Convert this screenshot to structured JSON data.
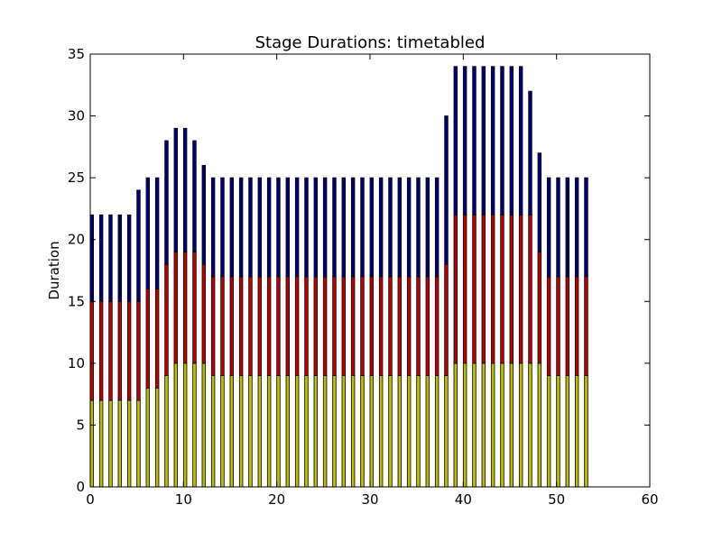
{
  "chart_data": {
    "type": "bar",
    "stacked": true,
    "title": "Stage Durations: timetabled",
    "xlabel": "",
    "ylabel": "Duration",
    "xlim": [
      0,
      60
    ],
    "ylim": [
      0,
      35
    ],
    "xticks": [
      0,
      10,
      20,
      30,
      40,
      50,
      60
    ],
    "yticks": [
      0,
      5,
      10,
      15,
      20,
      25,
      30,
      35
    ],
    "grid": false,
    "bar_width": 0.35,
    "x": [
      0,
      1,
      2,
      3,
      4,
      5,
      6,
      7,
      8,
      9,
      10,
      11,
      12,
      13,
      14,
      15,
      16,
      17,
      18,
      19,
      20,
      21,
      22,
      23,
      24,
      25,
      26,
      27,
      28,
      29,
      30,
      31,
      32,
      33,
      34,
      35,
      36,
      37,
      38,
      39,
      40,
      41,
      42,
      43,
      44,
      45,
      46,
      47,
      48,
      49,
      50,
      51,
      52,
      53
    ],
    "series": [
      {
        "color": "#bfbf00",
        "values": [
          7,
          7,
          7,
          7,
          7,
          7,
          8,
          8,
          9,
          10,
          10,
          10,
          10,
          9,
          9,
          9,
          9,
          9,
          9,
          9,
          9,
          9,
          9,
          9,
          9,
          9,
          9,
          9,
          9,
          9,
          9,
          9,
          9,
          9,
          9,
          9,
          9,
          9,
          9,
          10,
          10,
          10,
          10,
          10,
          10,
          10,
          10,
          10,
          10,
          9,
          9,
          9,
          9,
          9
        ]
      },
      {
        "color": "#bf0000",
        "values": [
          8,
          8,
          8,
          8,
          8,
          8,
          8,
          8,
          9,
          9,
          9,
          9,
          8,
          8,
          8,
          8,
          8,
          8,
          8,
          8,
          8,
          8,
          8,
          8,
          8,
          8,
          8,
          8,
          8,
          8,
          8,
          8,
          8,
          8,
          8,
          8,
          8,
          8,
          9,
          12,
          12,
          12,
          12,
          12,
          12,
          12,
          12,
          12,
          9,
          8,
          8,
          8,
          8,
          8
        ]
      },
      {
        "color": "#00007f",
        "values": [
          7,
          7,
          7,
          7,
          7,
          9,
          9,
          9,
          10,
          10,
          10,
          9,
          8,
          8,
          8,
          8,
          8,
          8,
          8,
          8,
          8,
          8,
          8,
          8,
          8,
          8,
          8,
          8,
          8,
          8,
          8,
          8,
          8,
          8,
          8,
          8,
          8,
          8,
          12,
          12,
          12,
          12,
          12,
          12,
          12,
          12,
          12,
          10,
          8,
          8,
          8,
          8,
          8,
          8
        ]
      }
    ]
  }
}
